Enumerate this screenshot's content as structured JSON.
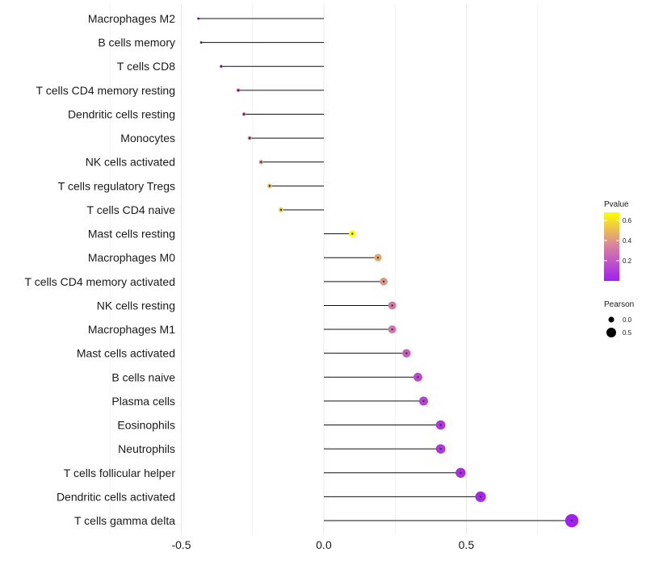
{
  "chart_data": {
    "type": "lollipop",
    "title": "",
    "xlabel": "",
    "ylabel": "",
    "xlim": [
      -0.5,
      0.87
    ],
    "xticks": [
      -0.5,
      0.0,
      0.5
    ],
    "xtick_labels": [
      "-0.5",
      "0.0",
      "0.5"
    ],
    "grid": true,
    "categories": [
      "Macrophages M2",
      "B cells memory",
      "T cells CD8",
      "T cells CD4 memory resting",
      "Dendritic cells resting",
      "Monocytes",
      "NK cells activated",
      "T cells regulatory  Tregs",
      "T cells CD4 naive",
      "Mast cells resting",
      "Macrophages M0",
      "T cells CD4 memory activated",
      "NK cells resting",
      "Macrophages M1",
      "Mast cells activated",
      "B cells naive",
      "Plasma cells",
      "Eosinophils",
      "Neutrophils",
      "T cells follicular helper",
      "Dendritic cells activated",
      "T cells gamma delta"
    ],
    "pearson": [
      -0.44,
      -0.43,
      -0.36,
      -0.3,
      -0.28,
      -0.26,
      -0.22,
      -0.19,
      -0.15,
      0.1,
      0.19,
      0.21,
      0.24,
      0.24,
      0.29,
      0.33,
      0.35,
      0.41,
      0.41,
      0.48,
      0.55,
      0.87
    ],
    "pvalue": [
      0.02,
      0.02,
      0.15,
      0.22,
      0.28,
      0.32,
      0.4,
      0.5,
      0.55,
      0.68,
      0.45,
      0.4,
      0.32,
      0.3,
      0.22,
      0.15,
      0.12,
      0.08,
      0.08,
      0.05,
      0.03,
      0.001
    ],
    "legend": {
      "position": "right",
      "color_title": "Pvalue",
      "color_ticks": [
        0.2,
        0.4,
        0.6
      ],
      "color_tick_labels": [
        "0.2",
        "0.4",
        "0.6"
      ],
      "color_range": [
        0.0,
        0.68
      ],
      "color_low": "#a020f0",
      "color_mid": "#d87fa3",
      "color_high": "#ffff00",
      "size_title": "Pearson",
      "size_values": [
        0.0,
        0.5
      ],
      "size_labels": [
        "0.0",
        "0.5"
      ]
    }
  }
}
